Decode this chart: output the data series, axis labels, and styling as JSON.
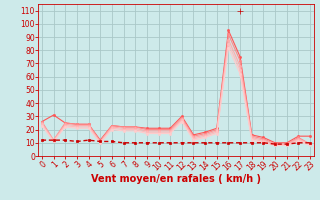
{
  "title": "",
  "xlabel": "Vent moyen/en rafales ( km/h )",
  "ylabel": "",
  "bg_color": "#cdeaea",
  "grid_color": "#aac8c8",
  "x_ticks": [
    0,
    1,
    2,
    3,
    4,
    5,
    6,
    7,
    8,
    9,
    10,
    11,
    12,
    13,
    14,
    15,
    16,
    17,
    18,
    19,
    20,
    21,
    22,
    23
  ],
  "y_ticks": [
    0,
    10,
    20,
    30,
    40,
    50,
    60,
    70,
    80,
    90,
    100,
    110
  ],
  "ylim": [
    0,
    115
  ],
  "xlim": [
    -0.3,
    23.3
  ],
  "series": [
    {
      "x": [
        0,
        1,
        2,
        3,
        4,
        5,
        6,
        7,
        8,
        9,
        10,
        11,
        12,
        13,
        14,
        15,
        16,
        17,
        18,
        19,
        20,
        21,
        22,
        23
      ],
      "y": [
        12,
        12,
        12,
        11,
        12,
        11,
        11,
        10,
        10,
        10,
        10,
        10,
        10,
        10,
        10,
        10,
        10,
        10,
        10,
        10,
        9,
        9,
        10,
        10
      ],
      "color": "#cc0000",
      "lw": 1.0,
      "marker": "s",
      "ms": 2.0,
      "dashes": [
        3,
        2
      ],
      "zorder": 4
    },
    {
      "x": [
        0,
        1,
        2,
        3,
        4,
        5,
        6,
        7,
        8,
        9,
        10,
        11,
        12,
        13,
        14,
        15,
        16,
        17,
        18,
        19,
        20,
        21,
        22,
        23
      ],
      "y": [
        26,
        31,
        25,
        24,
        24,
        12,
        23,
        22,
        22,
        21,
        21,
        21,
        30,
        16,
        18,
        21,
        95,
        75,
        16,
        14,
        10,
        10,
        15,
        15
      ],
      "color": "#ff5555",
      "lw": 0.8,
      "marker": "o",
      "ms": 1.5,
      "dashes": [],
      "zorder": 3
    },
    {
      "x": [
        0,
        1,
        2,
        3,
        4,
        5,
        6,
        7,
        8,
        9,
        10,
        11,
        12,
        13,
        14,
        15,
        16,
        17,
        18,
        19,
        20,
        21,
        22,
        23
      ],
      "y": [
        26,
        12,
        25,
        24,
        24,
        11,
        23,
        22,
        22,
        20,
        20,
        20,
        29,
        15,
        17,
        20,
        92,
        72,
        15,
        13,
        9,
        9,
        14,
        9
      ],
      "color": "#ff8888",
      "lw": 0.8,
      "marker": "o",
      "ms": 1.5,
      "dashes": [],
      "zorder": 3
    },
    {
      "x": [
        0,
        1,
        2,
        3,
        4,
        5,
        6,
        7,
        8,
        9,
        10,
        11,
        12,
        13,
        14,
        15,
        16,
        17,
        18,
        19,
        20,
        21,
        22,
        23
      ],
      "y": [
        25,
        12,
        24,
        23,
        23,
        11,
        22,
        21,
        21,
        19,
        19,
        19,
        28,
        14,
        16,
        19,
        88,
        68,
        14,
        12,
        9,
        9,
        13,
        9
      ],
      "color": "#ffaaaa",
      "lw": 0.8,
      "marker": "o",
      "ms": 1.5,
      "dashes": [],
      "zorder": 3
    },
    {
      "x": [
        0,
        1,
        2,
        3,
        4,
        5,
        6,
        7,
        8,
        9,
        10,
        11,
        12,
        13,
        14,
        15,
        16,
        17,
        18,
        19,
        20,
        21,
        22,
        23
      ],
      "y": [
        24,
        11,
        23,
        22,
        22,
        10,
        21,
        20,
        20,
        18,
        18,
        18,
        27,
        13,
        15,
        18,
        85,
        65,
        13,
        11,
        8,
        8,
        12,
        9
      ],
      "color": "#ffbbbb",
      "lw": 0.8,
      "marker": "o",
      "ms": 1.5,
      "dashes": [],
      "zorder": 3
    },
    {
      "x": [
        0,
        1,
        2,
        3,
        4,
        5,
        6,
        7,
        8,
        9,
        10,
        11,
        12,
        13,
        14,
        15,
        16,
        17,
        18,
        19,
        20,
        21,
        22,
        23
      ],
      "y": [
        23,
        11,
        22,
        21,
        21,
        10,
        20,
        19,
        19,
        17,
        17,
        17,
        26,
        12,
        14,
        17,
        82,
        62,
        12,
        10,
        8,
        8,
        11,
        8
      ],
      "color": "#ffcccc",
      "lw": 0.8,
      "marker": "o",
      "ms": 1.5,
      "dashes": [],
      "zorder": 3
    },
    {
      "x": [
        17
      ],
      "y": [
        110
      ],
      "color": "#cc0000",
      "lw": 0,
      "marker": "+",
      "ms": 5,
      "dashes": [],
      "zorder": 5
    }
  ],
  "tick_color": "#cc0000",
  "tick_fontsize": 5.5,
  "label_fontsize": 7,
  "label_color": "#cc0000",
  "label_fontweight": "bold"
}
